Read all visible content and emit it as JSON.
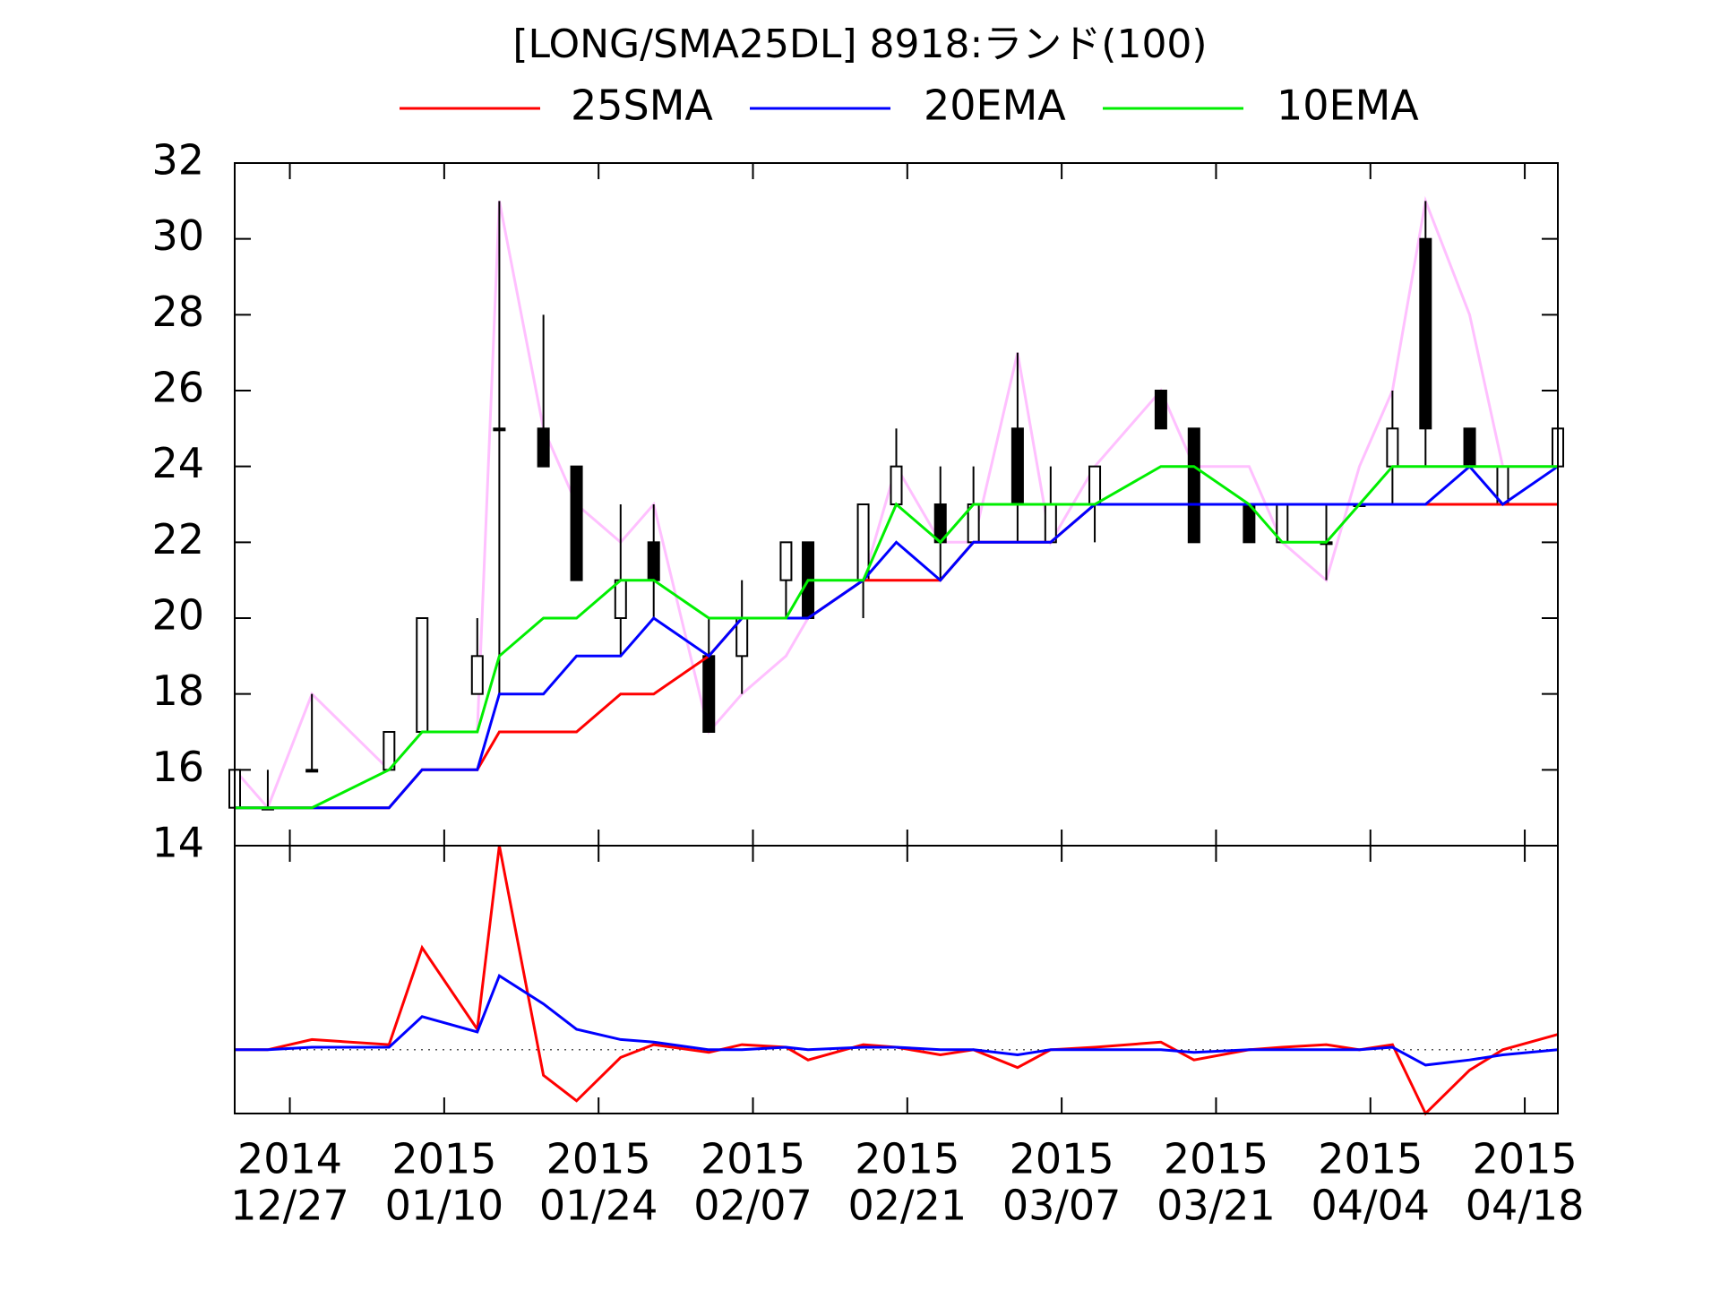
{
  "chart_data": [
    {
      "type": "candlestick",
      "title": "[LONG/SMA25DL] 8918:ランド(100)",
      "x": [
        "2014-12-22",
        "2014-12-25",
        "2014-12-29",
        "2015-01-05",
        "2015-01-08",
        "2015-01-13",
        "2015-01-15",
        "2015-01-19",
        "2015-01-22",
        "2015-01-26",
        "2015-01-29",
        "2015-02-03",
        "2015-02-06",
        "2015-02-10",
        "2015-02-12",
        "2015-02-17",
        "2015-02-20",
        "2015-02-24",
        "2015-02-27",
        "2015-03-03",
        "2015-03-06",
        "2015-03-10",
        "2015-03-16",
        "2015-03-19",
        "2015-03-24",
        "2015-03-27",
        "2015-03-31",
        "2015-04-03",
        "2015-04-06",
        "2015-04-09",
        "2015-04-13",
        "2015-04-16",
        "2015-04-21"
      ],
      "candles": {
        "open": [
          15,
          15,
          16,
          16,
          17,
          18,
          25,
          25,
          24,
          20,
          22,
          19,
          19,
          21,
          22,
          21,
          23,
          23,
          22,
          25,
          22,
          23,
          26,
          25,
          23,
          22,
          22,
          23,
          24,
          30,
          25,
          23,
          24
        ],
        "high": [
          16,
          16,
          18,
          17,
          20,
          20,
          31,
          28,
          24,
          23,
          23,
          20,
          21,
          22,
          22,
          23,
          25,
          24,
          24,
          27,
          24,
          24,
          26,
          25,
          23,
          23,
          23,
          23,
          26,
          31,
          25,
          24,
          25
        ],
        "low": [
          15,
          15,
          16,
          16,
          17,
          18,
          18,
          24,
          21,
          19,
          20,
          17,
          18,
          20,
          20,
          20,
          23,
          21,
          22,
          22,
          22,
          22,
          25,
          22,
          22,
          22,
          21,
          23,
          23,
          24,
          24,
          23,
          24
        ],
        "close": [
          16,
          15,
          16,
          17,
          20,
          19,
          25,
          24,
          21,
          21,
          21,
          17,
          20,
          22,
          20,
          23,
          24,
          22,
          23,
          23,
          23,
          24,
          25,
          22,
          22,
          23,
          22,
          23,
          25,
          25,
          24,
          24,
          25
        ]
      },
      "series": [
        {
          "color": "#ffc0ff",
          "values": [
            16,
            15,
            18,
            16,
            17,
            17,
            31,
            25,
            23,
            22,
            23,
            17,
            18,
            19,
            20,
            21,
            24,
            22,
            22,
            27,
            22,
            24,
            26,
            24,
            24,
            22,
            21,
            24,
            26,
            31,
            28,
            24,
            24
          ]
        },
        {
          "name": "25SMA",
          "color": "#ff0000",
          "values": [
            15,
            15,
            15,
            15,
            16,
            16,
            17,
            17,
            17,
            18,
            18,
            19,
            20,
            20,
            20,
            21,
            21,
            21,
            22,
            22,
            22,
            23,
            23,
            23,
            23,
            23,
            23,
            23,
            23,
            23,
            23,
            23,
            23
          ]
        },
        {
          "name": "20EMA",
          "color": "#0000ff",
          "values": [
            15,
            15,
            15,
            15,
            16,
            16,
            18,
            18,
            19,
            19,
            20,
            19,
            20,
            20,
            20,
            21,
            22,
            21,
            22,
            22,
            22,
            23,
            23,
            23,
            23,
            23,
            23,
            23,
            23,
            23,
            24,
            23,
            24
          ]
        },
        {
          "name": "10EMA",
          "color": "#00ee00",
          "values": [
            15,
            15,
            15,
            16,
            17,
            17,
            19,
            20,
            20,
            21,
            21,
            20,
            20,
            20,
            21,
            21,
            23,
            22,
            23,
            23,
            23,
            23,
            24,
            24,
            23,
            22,
            22,
            23,
            24,
            24,
            24,
            24,
            24
          ]
        }
      ],
      "up_color": "#ffffff",
      "down_color": "#000000",
      "xlim": [
        "2014-12-22",
        "2015-04-21"
      ],
      "ylim": [
        14,
        32
      ],
      "yticks": [
        14,
        16,
        18,
        20,
        22,
        24,
        26,
        28,
        30,
        32
      ]
    },
    {
      "type": "line",
      "x": [
        "2014-12-22",
        "2014-12-25",
        "2014-12-29",
        "2015-01-05",
        "2015-01-08",
        "2015-01-13",
        "2015-01-15",
        "2015-01-19",
        "2015-01-22",
        "2015-01-26",
        "2015-01-29",
        "2015-02-03",
        "2015-02-06",
        "2015-02-10",
        "2015-02-12",
        "2015-02-17",
        "2015-02-20",
        "2015-02-24",
        "2015-02-27",
        "2015-03-03",
        "2015-03-06",
        "2015-03-10",
        "2015-03-16",
        "2015-03-19",
        "2015-03-24",
        "2015-03-27",
        "2015-03-31",
        "2015-04-03",
        "2015-04-06",
        "2015-04-09",
        "2015-04-13",
        "2015-04-16",
        "2015-04-21"
      ],
      "series": [
        {
          "color": "#ff0000",
          "values": [
            0,
            0,
            4,
            2,
            40,
            8,
            80,
            -10,
            -20,
            -3,
            2,
            -1,
            2,
            1,
            -4,
            2,
            1,
            -2,
            0,
            -7,
            0,
            1,
            3,
            -4,
            0,
            1,
            2,
            0,
            2,
            -25,
            -8,
            0,
            6
          ]
        },
        {
          "color": "#0000ff",
          "values": [
            0,
            0,
            1,
            1,
            13,
            7,
            29,
            18,
            8,
            4,
            3,
            0,
            0,
            1,
            0,
            1,
            1,
            0,
            0,
            -2,
            0,
            0,
            0,
            -1,
            0,
            0,
            0,
            0,
            1,
            -6,
            -4,
            -2,
            0
          ]
        }
      ],
      "reference_line": 0,
      "xlim": [
        "2014-12-22",
        "2015-04-21"
      ],
      "ylim": [
        -25,
        80
      ],
      "xticks": [
        {
          "value": "2014-12-27",
          "label": [
            "2014",
            "12/27"
          ]
        },
        {
          "value": "2015-01-10",
          "label": [
            "2015",
            "01/10"
          ]
        },
        {
          "value": "2015-01-24",
          "label": [
            "2015",
            "01/24"
          ]
        },
        {
          "value": "2015-02-07",
          "label": [
            "2015",
            "02/07"
          ]
        },
        {
          "value": "2015-02-21",
          "label": [
            "2015",
            "02/21"
          ]
        },
        {
          "value": "2015-03-07",
          "label": [
            "2015",
            "03/07"
          ]
        },
        {
          "value": "2015-03-21",
          "label": [
            "2015",
            "03/21"
          ]
        },
        {
          "value": "2015-04-04",
          "label": [
            "2015",
            "04/04"
          ]
        },
        {
          "value": "2015-04-18",
          "label": [
            "2015",
            "04/18"
          ]
        }
      ]
    }
  ]
}
